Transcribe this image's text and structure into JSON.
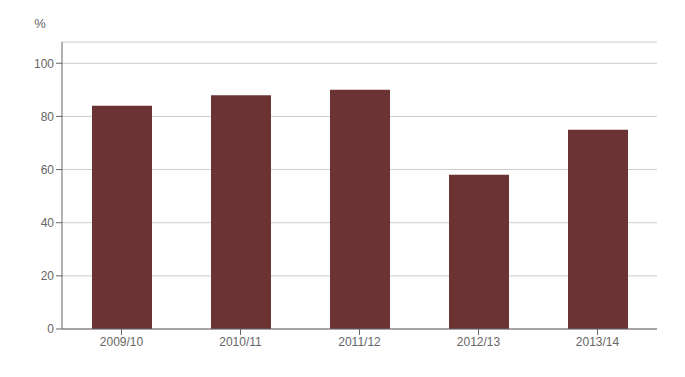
{
  "chart_data": {
    "type": "bar",
    "categories": [
      "2009/10",
      "2010/11",
      "2011/12",
      "2012/13",
      "2013/14"
    ],
    "values": [
      84,
      88,
      90,
      58,
      75
    ],
    "color": "#6B3333",
    "ylim": [
      0,
      108
    ],
    "yticks": [
      0,
      20,
      40,
      60,
      80,
      100
    ],
    "ylabel": "%",
    "grid": true
  }
}
